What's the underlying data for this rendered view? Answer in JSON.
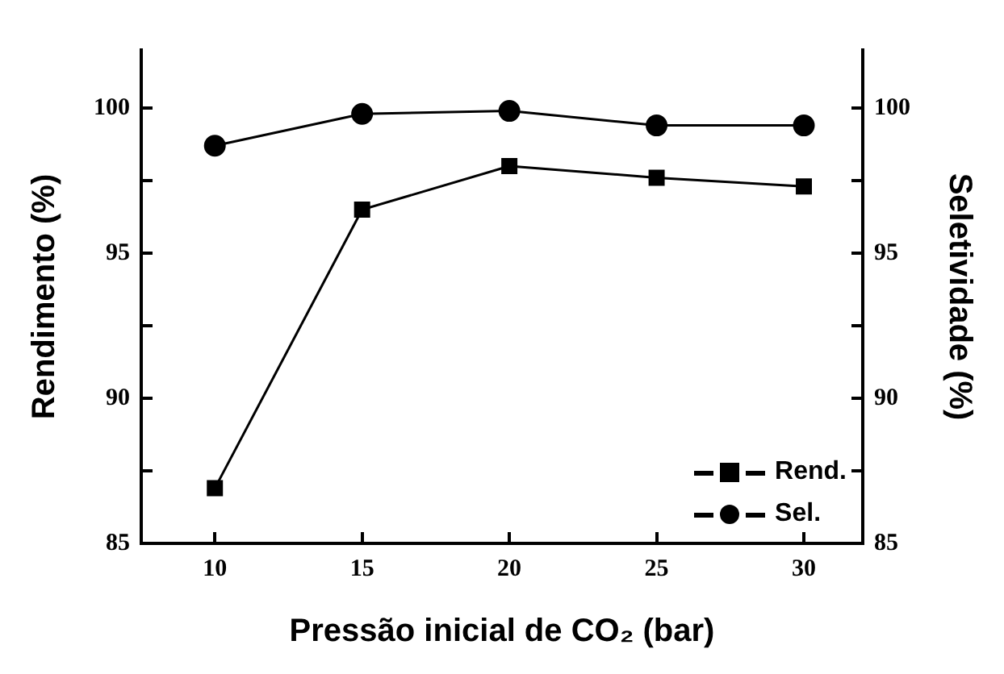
{
  "chart_data": {
    "type": "line",
    "xlabel": "Pressão inicial de CO₂ (bar)",
    "ylabel": "Rendimento (%)",
    "y2label": "Seletividade (%)",
    "x": [
      10,
      15,
      20,
      25,
      30
    ],
    "series": [
      {
        "name": "Rend.",
        "color": "#000000",
        "marker": "square",
        "values": [
          86.9,
          96.5,
          98.0,
          97.6,
          97.3
        ]
      },
      {
        "name": "Sel.",
        "color": "#000000",
        "marker": "circle",
        "axis": "y2",
        "values": [
          98.7,
          99.8,
          99.9,
          99.4,
          99.4
        ]
      }
    ],
    "xlim": [
      7.5,
      32
    ],
    "xticks": [
      10,
      15,
      20,
      25,
      30
    ],
    "ylim": [
      85,
      102
    ],
    "yticks": [
      85,
      {
        "value": 87.5,
        "label": null
      },
      90,
      {
        "value": 92.5,
        "label": null
      },
      95,
      {
        "value": 97.5,
        "label": null
      },
      100
    ],
    "y2lim": [
      85,
      102
    ],
    "y2ticks": [
      85,
      {
        "value": 87.5,
        "label": null
      },
      90,
      {
        "value": 92.5,
        "label": null
      },
      95,
      {
        "value": 97.5,
        "label": null
      },
      100
    ],
    "legend": "bottom right",
    "grid": false,
    "line_style": "solid"
  }
}
